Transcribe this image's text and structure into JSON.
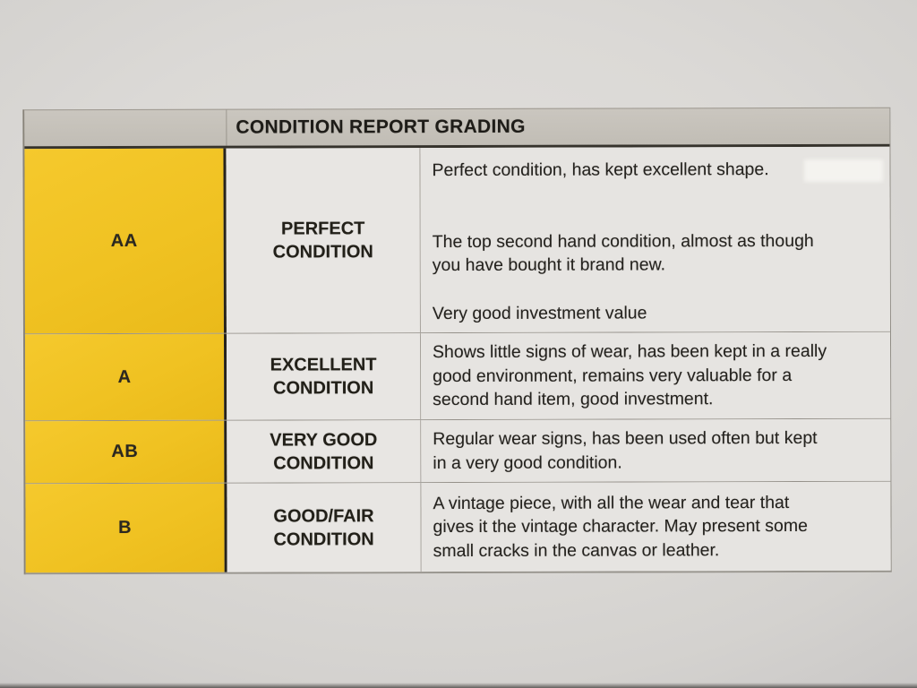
{
  "document": {
    "kind": "photographed printed table",
    "header": {
      "title": "CONDITION REPORT GRADING"
    },
    "rows": [
      {
        "grade": "AA",
        "condition": "PERFECT\nCONDITION",
        "descriptions": [
          "Perfect condition, has kept excellent shape.",
          "The top second hand condition, almost as though\nyou have bought it brand new.",
          "Very good investment value"
        ]
      },
      {
        "grade": "A",
        "condition": "EXCELLENT\nCONDITION",
        "descriptions": [
          "Shows little signs of wear, has been kept in a really\ngood environment, remains very valuable for a\nsecond hand item, good investment."
        ]
      },
      {
        "grade": "AB",
        "condition": "VERY GOOD\nCONDITION",
        "descriptions": [
          "Regular wear signs, has been used often but kept\nin a very good condition."
        ]
      },
      {
        "grade": "B",
        "condition": "GOOD/FAIR\nCONDITION",
        "descriptions": [
          "A vintage piece, with all the wear and tear that\ngives it the vintage character. May present some\nsmall cracks in the canvas or leather."
        ]
      }
    ],
    "colors": {
      "grade_column_yellow": "#f0c222",
      "header_gray": "#c5c1ba",
      "cell_gray": "#e6e4e1",
      "border_dark": "#26231d",
      "text": "#24221e"
    }
  }
}
